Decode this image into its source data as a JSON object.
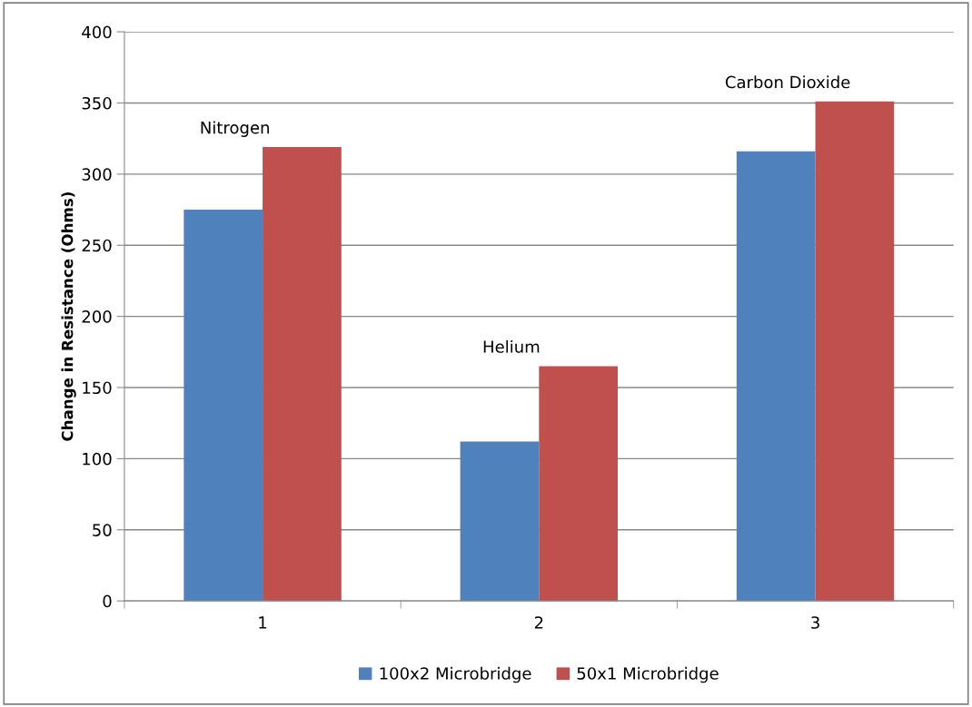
{
  "chart_data": {
    "type": "bar",
    "ylabel": "Change in Resistance (Ohms)",
    "categories": [
      "1",
      "2",
      "3"
    ],
    "series": [
      {
        "name": "100x2 Microbridge",
        "color": "#4f81bd",
        "values": [
          275,
          112,
          316
        ]
      },
      {
        "name": "50x1 Microbridge",
        "color": "#c0504d",
        "values": [
          319,
          165,
          351
        ]
      }
    ],
    "ylim": [
      0,
      400
    ],
    "yticks": [
      0,
      50,
      100,
      150,
      200,
      250,
      300,
      350,
      400
    ],
    "grid": "y",
    "legend": "bottom",
    "annotations": [
      "Nitrogen",
      "Helium",
      "Carbon Dioxide"
    ]
  }
}
